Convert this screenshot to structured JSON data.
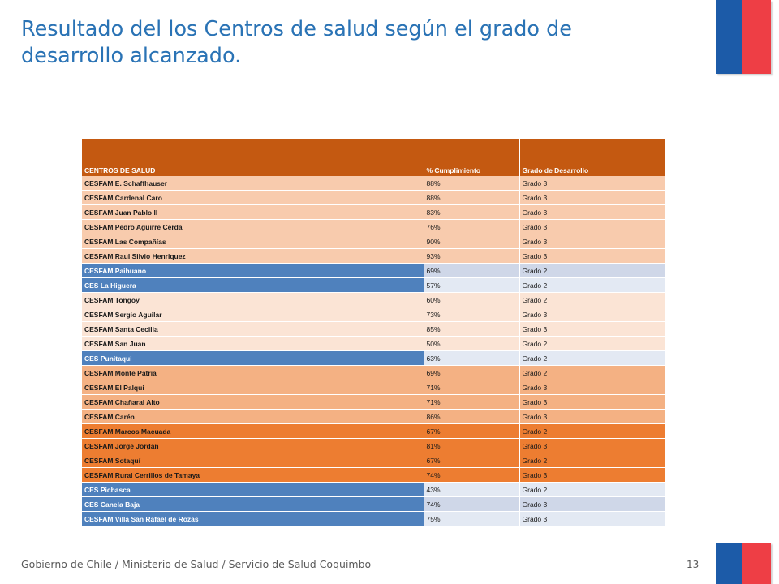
{
  "title": "Resultado del los Centros de salud según el grado de desarrollo alcanzado.",
  "colors": {
    "title": "#2a73b5",
    "header": "#c45911",
    "flag_blue": "#1c5ba8",
    "flag_red": "#ee3e45",
    "highlight_blue": "#4f81bd"
  },
  "table": {
    "headers": [
      "CENTROS DE SALUD",
      "% Cumplimiento",
      "Grado de Desarrollo"
    ],
    "rows": [
      {
        "name": "CESFAM E. Schaffhauser",
        "pct": "88%",
        "grado": "Grado 3",
        "style": "light"
      },
      {
        "name": "CESFAM Cardenal Caro",
        "pct": "88%",
        "grado": "Grado 3",
        "style": "light"
      },
      {
        "name": "CESFAM Juan Pablo II",
        "pct": "83%",
        "grado": "Grado 3",
        "style": "light"
      },
      {
        "name": "CESFAM Pedro Aguirre Cerda",
        "pct": "76%",
        "grado": "Grado 3",
        "style": "light"
      },
      {
        "name": "CESFAM Las Compañías",
        "pct": "90%",
        "grado": "Grado 3",
        "style": "light"
      },
      {
        "name": "CESFAM Raul Silvio Henriquez",
        "pct": "93%",
        "grado": "Grado 3",
        "style": "light"
      },
      {
        "name": "CESFAM Paihuano",
        "pct": "69%",
        "grado": "Grado 2",
        "style": "blue2"
      },
      {
        "name": "CES La Higuera",
        "pct": "57%",
        "grado": "Grado 2",
        "style": "blue"
      },
      {
        "name": "CESFAM Tongoy",
        "pct": "60%",
        "grado": "Grado 2",
        "style": "lighter"
      },
      {
        "name": "CESFAM Sergio Aguilar",
        "pct": "73%",
        "grado": "Grado 3",
        "style": "lighter"
      },
      {
        "name": "CESFAM Santa Cecilia",
        "pct": "85%",
        "grado": "Grado 3",
        "style": "lighter"
      },
      {
        "name": "CESFAM San Juan",
        "pct": "50%",
        "grado": "Grado 2",
        "style": "lighter"
      },
      {
        "name": "CES  Punitaqui",
        "pct": "63%",
        "grado": "Grado 2",
        "style": "blue"
      },
      {
        "name": "CESFAM Monte Patria",
        "pct": "69%",
        "grado": "Grado 2",
        "style": "mid"
      },
      {
        "name": "CESFAM El Palqui",
        "pct": "71%",
        "grado": "Grado 3",
        "style": "mid"
      },
      {
        "name": "CESFAM Chañaral Alto",
        "pct": "71%",
        "grado": "Grado 3",
        "style": "mid"
      },
      {
        "name": "CESFAM Carén",
        "pct": "86%",
        "grado": "Grado 3",
        "style": "mid"
      },
      {
        "name": "CESFAM Marcos Macuada",
        "pct": "67%",
        "grado": "Grado 2",
        "style": "dark"
      },
      {
        "name": "CESFAM Jorge Jordan",
        "pct": "81%",
        "grado": "Grado 3",
        "style": "dark"
      },
      {
        "name": "CESFAM Sotaquí",
        "pct": "67%",
        "grado": "Grado 2",
        "style": "dark"
      },
      {
        "name": "CESFAM Rural Cerrillos de Tamaya",
        "pct": "74%",
        "grado": "Grado 3",
        "style": "dark"
      },
      {
        "name": "CES Pichasca",
        "pct": "43%",
        "grado": "Grado 2",
        "style": "blue"
      },
      {
        "name": "CES Canela Baja",
        "pct": "74%",
        "grado": "Grado 3",
        "style": "blue2"
      },
      {
        "name": "CESFAM Villa San Rafael de Rozas",
        "pct": "75%",
        "grado": "Grado 3",
        "style": "blue"
      }
    ]
  },
  "footer": "Gobierno de Chile / Ministerio de Salud / Servicio de Salud Coquimbo",
  "page_number": "13"
}
